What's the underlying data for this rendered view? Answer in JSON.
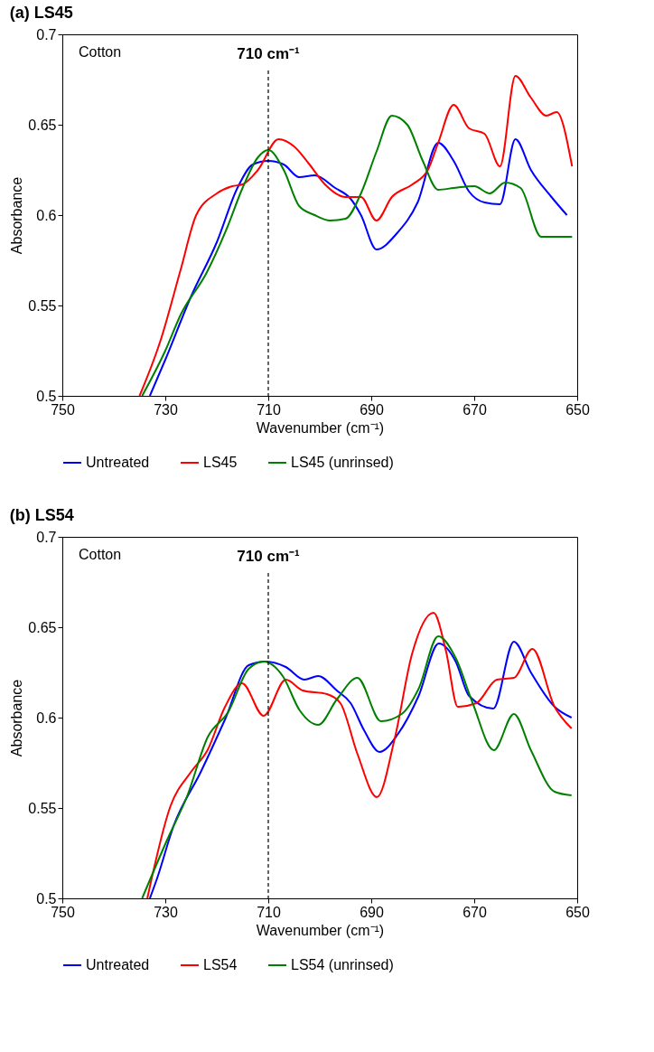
{
  "chart_data": [
    {
      "type": "line",
      "title": "(a) LS45",
      "xlabel": "Wavenumber (cm⁻¹)",
      "ylabel": "Absorbance",
      "annotations": [
        "Cotton"
      ],
      "xlim": [
        750,
        650
      ],
      "xticks": [
        750,
        730,
        710,
        690,
        670,
        650
      ],
      "ylim": [
        0.5,
        0.7
      ],
      "yticks": [
        0.5,
        0.55,
        0.6,
        0.65,
        0.7
      ],
      "legend": "bottom",
      "ref_lines": [
        {
          "axis": "x",
          "value": 710,
          "label": "710 cm⁻¹",
          "line_style": "dashed",
          "color": "#000000"
        }
      ],
      "series": [
        {
          "name": "Untreated",
          "color": "#0000ff",
          "x": [
            733,
            730,
            725,
            720,
            716,
            713,
            710,
            707,
            704,
            701,
            697,
            694,
            692,
            689,
            685,
            681,
            677,
            674,
            671,
            668,
            665,
            662,
            659,
            655,
            652
          ],
          "values": [
            0.5,
            0.52,
            0.555,
            0.585,
            0.615,
            0.628,
            0.63,
            0.628,
            0.621,
            0.622,
            0.615,
            0.609,
            0.6,
            0.581,
            0.59,
            0.607,
            0.64,
            0.63,
            0.613,
            0.607,
            0.606,
            0.642,
            0.625,
            0.61,
            0.6
          ]
        },
        {
          "name": "LS45",
          "color": "#ff0000",
          "x": [
            735,
            731,
            727,
            724,
            720,
            717,
            715,
            712,
            708,
            705,
            702,
            699,
            695,
            692,
            689,
            686,
            682,
            679,
            677,
            674,
            671,
            668,
            665,
            662,
            659,
            656,
            654,
            651
          ],
          "values": [
            0.5,
            0.53,
            0.57,
            0.6,
            0.612,
            0.616,
            0.617,
            0.625,
            0.642,
            0.638,
            0.628,
            0.617,
            0.61,
            0.61,
            0.597,
            0.61,
            0.617,
            0.625,
            0.64,
            0.661,
            0.648,
            0.645,
            0.627,
            0.677,
            0.665,
            0.655,
            0.657,
            0.627
          ]
        },
        {
          "name": "LS45 (unrinsed)",
          "color": "#008000",
          "x": [
            734.5,
            730,
            727,
            722,
            718,
            715,
            712,
            710,
            707,
            704,
            701,
            698,
            695,
            692,
            689,
            686,
            683,
            680,
            677,
            674,
            670,
            667,
            664,
            661,
            657,
            655,
            651
          ],
          "values": [
            0.5,
            0.525,
            0.545,
            0.568,
            0.593,
            0.615,
            0.632,
            0.636,
            0.625,
            0.605,
            0.6,
            0.597,
            0.598,
            0.612,
            0.635,
            0.655,
            0.65,
            0.63,
            0.614,
            0.615,
            0.616,
            0.612,
            0.618,
            0.615,
            0.588,
            0.588,
            0.588
          ]
        }
      ]
    },
    {
      "type": "line",
      "title": "(b) LS54",
      "xlabel": "Wavenumber (cm⁻¹)",
      "ylabel": "Absorbance",
      "annotations": [
        "Cotton"
      ],
      "xlim": [
        750,
        650
      ],
      "xticks": [
        750,
        730,
        710,
        690,
        670,
        650
      ],
      "ylim": [
        0.5,
        0.7
      ],
      "yticks": [
        0.5,
        0.55,
        0.6,
        0.65,
        0.7
      ],
      "legend": "bottom",
      "ref_lines": [
        {
          "axis": "x",
          "value": 710,
          "label": "710 cm⁻¹",
          "line_style": "dashed",
          "color": "#000000"
        }
      ],
      "series": [
        {
          "name": "Untreated",
          "color": "#0000ff",
          "x": [
            733,
            731.6,
            728.4,
            723.1,
            718.4,
            713.8,
            710.5,
            706.6,
            703,
            700.3,
            696.7,
            694,
            691.4,
            688.4,
            684.8,
            680.8,
            676.9,
            673.6,
            671,
            666.3,
            662.3,
            659,
            654.4,
            651.1
          ],
          "values": [
            0.5,
            0.511,
            0.54,
            0.57,
            0.599,
            0.629,
            0.631,
            0.628,
            0.621,
            0.623,
            0.615,
            0.608,
            0.593,
            0.581,
            0.591,
            0.612,
            0.641,
            0.631,
            0.612,
            0.605,
            0.642,
            0.625,
            0.606,
            0.6
          ]
        },
        {
          "name": "LS54",
          "color": "#ff0000",
          "x": [
            733.5,
            729,
            725,
            721.8,
            718.4,
            715.1,
            710.9,
            706.6,
            703.3,
            698.6,
            696,
            692.7,
            688.9,
            685.4,
            682.1,
            677.9,
            675.5,
            673.2,
            669.6,
            665.6,
            662.3,
            658.7,
            654.4,
            651.1
          ],
          "values": [
            0.5,
            0.551,
            0.57,
            0.582,
            0.606,
            0.619,
            0.601,
            0.621,
            0.615,
            0.613,
            0.608,
            0.58,
            0.556,
            0.589,
            0.635,
            0.658,
            0.637,
            0.606,
            0.608,
            0.621,
            0.622,
            0.638,
            0.606,
            0.594
          ]
        },
        {
          "name": "LS54 (unrinsed)",
          "color": "#008000",
          "x": [
            734.5,
            729.7,
            725.7,
            721.8,
            717.8,
            713.8,
            710.9,
            707.2,
            703.9,
            700.3,
            696.7,
            692.7,
            688.1,
            684.1,
            680.8,
            677,
            673.6,
            670.3,
            666.2,
            662.3,
            659,
            654.4,
            651.1
          ],
          "values": [
            0.5,
            0.532,
            0.557,
            0.589,
            0.603,
            0.627,
            0.631,
            0.623,
            0.604,
            0.596,
            0.61,
            0.622,
            0.598,
            0.602,
            0.616,
            0.645,
            0.633,
            0.608,
            0.582,
            0.602,
            0.582,
            0.559,
            0.557
          ]
        }
      ]
    }
  ]
}
